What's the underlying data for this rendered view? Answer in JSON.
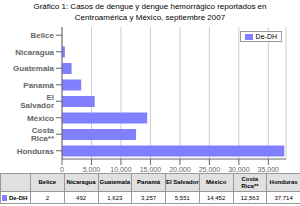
{
  "chart_data": {
    "type": "bar",
    "title": "Gráfico 1: Casos de dengue y dengue hemorrágico reportados en",
    "subtitle": "Centroamérica y México, septiembre 2007",
    "orientation": "horizontal",
    "categories": [
      "Honduras",
      "Costa Rica**",
      "México",
      "El Salvador",
      "Panamá",
      "Guatemala",
      "Nicaragua",
      "Belice"
    ],
    "series": [
      {
        "name": "De-DH",
        "color": "#8080ff",
        "values": [
          37714,
          12563,
          14452,
          5551,
          3257,
          1623,
          492,
          2
        ]
      }
    ],
    "xlim": [
      0,
      38000
    ],
    "xticks": [
      0,
      {
        "value": 5000,
        "label": "5,000"
      },
      {
        "value": 10000,
        "label": "10,000"
      },
      {
        "value": 15000,
        "label": "15,000"
      },
      {
        "value": 20000,
        "label": "20,000"
      },
      {
        "value": 25000,
        "label": "25,000"
      },
      {
        "value": 30000,
        "label": "30,000"
      },
      {
        "value": 35000,
        "label": "35,000"
      }
    ],
    "grid": true,
    "legend": "upper right",
    "table": {
      "row_label": "De-DH",
      "categories": [
        "Belice",
        "Nicaragua",
        "Guatemala",
        "Panamá",
        "El Salvador",
        "México",
        "Costa Rica**",
        "Honduras"
      ],
      "values": [
        2,
        492,
        1623,
        3257,
        5551,
        14452,
        12563,
        37714
      ],
      "value_labels": [
        "2",
        "492",
        "1,623",
        "3,257",
        "5,551",
        "14,452",
        "12,563",
        "37,714"
      ]
    }
  }
}
